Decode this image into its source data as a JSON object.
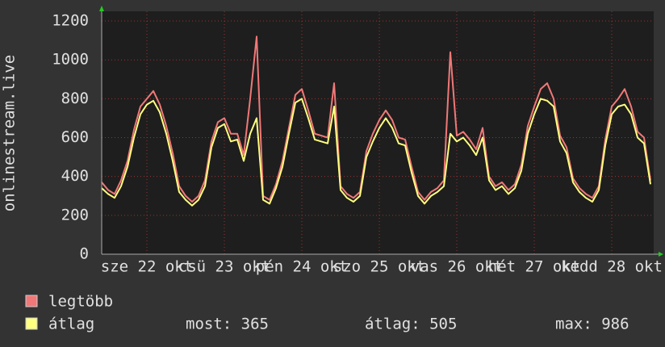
{
  "chart_data": {
    "type": "line",
    "ylabel": "onlinestream.live",
    "x": [
      0,
      2,
      4,
      6,
      8,
      10,
      12,
      14,
      16,
      18,
      20,
      22,
      24,
      26,
      28,
      30,
      32,
      34,
      36,
      38,
      40,
      42,
      44,
      46,
      48,
      50,
      52,
      54,
      56,
      58,
      60,
      62,
      64,
      66,
      68,
      70,
      72,
      74,
      76,
      78,
      80,
      82,
      84,
      86,
      88,
      90,
      92,
      94,
      96,
      98,
      100,
      102,
      104,
      106,
      108,
      110,
      112,
      114,
      116,
      118,
      120,
      122,
      124,
      126,
      128,
      130,
      132,
      134,
      136,
      138,
      140,
      142,
      144,
      146,
      148,
      150,
      152,
      154,
      156,
      158,
      160,
      162,
      164,
      166,
      168,
      170
    ],
    "series": [
      {
        "name": "legtöbb",
        "color": "#f07878",
        "values": [
          370,
          330,
          310,
          380,
          480,
          640,
          760,
          800,
          840,
          770,
          660,
          520,
          350,
          300,
          270,
          300,
          380,
          580,
          680,
          700,
          620,
          620,
          510,
          800,
          1120,
          300,
          280,
          360,
          480,
          650,
          820,
          850,
          740,
          620,
          610,
          600,
          880,
          350,
          310,
          290,
          320,
          530,
          620,
          690,
          740,
          690,
          600,
          590,
          450,
          320,
          280,
          320,
          340,
          380,
          1040,
          610,
          630,
          590,
          540,
          650,
          400,
          350,
          370,
          330,
          360,
          460,
          660,
          760,
          850,
          880,
          800,
          610,
          550,
          390,
          340,
          310,
          290,
          350,
          590,
          760,
          800,
          850,
          760,
          630,
          600,
          380
        ]
      },
      {
        "name": "átlag",
        "color": "#ffff80",
        "values": [
          340,
          310,
          290,
          350,
          450,
          600,
          720,
          770,
          790,
          730,
          620,
          480,
          320,
          280,
          250,
          280,
          350,
          550,
          650,
          670,
          580,
          590,
          480,
          620,
          700,
          280,
          260,
          340,
          450,
          620,
          780,
          800,
          700,
          590,
          580,
          570,
          760,
          330,
          290,
          270,
          300,
          500,
          580,
          650,
          700,
          650,
          570,
          560,
          420,
          300,
          260,
          300,
          320,
          350,
          620,
          580,
          600,
          560,
          510,
          600,
          380,
          330,
          350,
          310,
          340,
          430,
          620,
          720,
          800,
          790,
          760,
          580,
          520,
          370,
          320,
          290,
          270,
          330,
          560,
          720,
          760,
          770,
          720,
          600,
          570,
          360
        ]
      }
    ],
    "xlim": [
      0,
      171
    ],
    "xticks": [
      {
        "value": 14,
        "label": "sze 22 okt"
      },
      {
        "value": 38,
        "label": "csü 23 okt"
      },
      {
        "value": 62,
        "label": "pén 24 okt"
      },
      {
        "value": 86,
        "label": "szo 25 okt"
      },
      {
        "value": 110,
        "label": "vas 26 okt"
      },
      {
        "value": 134,
        "label": "hét 27 okt"
      },
      {
        "value": 158,
        "label": "kedd 28 okt"
      }
    ],
    "ylim": [
      0,
      1250
    ],
    "yticks": [
      0,
      200,
      400,
      600,
      800,
      1000,
      1200
    ],
    "grid": true,
    "stats": [
      "most: 365",
      "átlag: 505",
      "max: 986"
    ]
  }
}
